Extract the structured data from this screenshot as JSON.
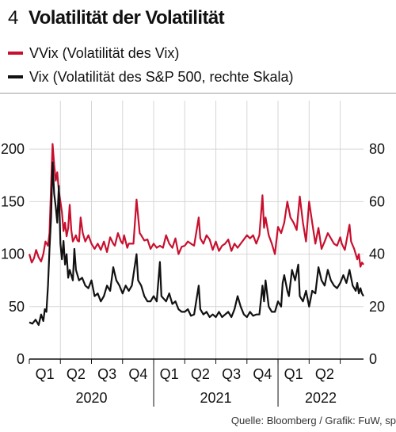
{
  "figure_number": "4",
  "title": "Volatilität der Volatilität",
  "source": "Quelle: Bloomberg / Grafik: FuW, sp",
  "colors": {
    "vvix": "#c8102e",
    "vix": "#111111",
    "grid": "#d6d6d6",
    "frame": "#9e9e9e"
  },
  "chart_data": {
    "type": "line",
    "x_unit": "quarter",
    "x_start": "2020-01-01",
    "xlim": [
      0,
      10.75
    ],
    "quarter_labels": [
      "Q1",
      "Q2",
      "Q3",
      "Q4",
      "Q1",
      "Q2",
      "Q3",
      "Q4",
      "Q1",
      "Q2"
    ],
    "year_labels": [
      {
        "label": "2020",
        "span": [
          0,
          4
        ]
      },
      {
        "label": "2021",
        "span": [
          4,
          8
        ]
      },
      {
        "label": "2022",
        "span": [
          8,
          10.75
        ]
      }
    ],
    "y_left": {
      "ticks": [
        0,
        50,
        100,
        150,
        200
      ],
      "lim": [
        0,
        216
      ]
    },
    "y_right": {
      "ticks": [
        0,
        20,
        40,
        60,
        80
      ],
      "lim": [
        0,
        86.4
      ]
    },
    "grid": true,
    "series": [
      {
        "name": "VVix (Volatilität des Vix)",
        "axis": "left",
        "color": "#c8102e",
        "points": [
          [
            0.0,
            100
          ],
          [
            0.08,
            92
          ],
          [
            0.15,
            96
          ],
          [
            0.22,
            104
          ],
          [
            0.3,
            97
          ],
          [
            0.38,
            93
          ],
          [
            0.45,
            100
          ],
          [
            0.52,
            112
          ],
          [
            0.6,
            108
          ],
          [
            0.65,
            120
          ],
          [
            0.7,
            165
          ],
          [
            0.75,
            205
          ],
          [
            0.8,
            185
          ],
          [
            0.85,
            170
          ],
          [
            0.9,
            178
          ],
          [
            0.95,
            160
          ],
          [
            1.0,
            150
          ],
          [
            1.05,
            140
          ],
          [
            1.1,
            122
          ],
          [
            1.15,
            130
          ],
          [
            1.2,
            117
          ],
          [
            1.25,
            125
          ],
          [
            1.3,
            147
          ],
          [
            1.35,
            123
          ],
          [
            1.4,
            112
          ],
          [
            1.5,
            118
          ],
          [
            1.55,
            113
          ],
          [
            1.6,
            112
          ],
          [
            1.65,
            135
          ],
          [
            1.72,
            120
          ],
          [
            1.8,
            112
          ],
          [
            1.9,
            118
          ],
          [
            2.0,
            110
          ],
          [
            2.1,
            105
          ],
          [
            2.2,
            110
          ],
          [
            2.3,
            104
          ],
          [
            2.4,
            112
          ],
          [
            2.5,
            102
          ],
          [
            2.6,
            116
          ],
          [
            2.7,
            110
          ],
          [
            2.75,
            108
          ],
          [
            2.85,
            120
          ],
          [
            2.95,
            112
          ],
          [
            3.0,
            110
          ],
          [
            3.05,
            118
          ],
          [
            3.15,
            106
          ],
          [
            3.2,
            110
          ],
          [
            3.35,
            110
          ],
          [
            3.45,
            152
          ],
          [
            3.55,
            120
          ],
          [
            3.6,
            118
          ],
          [
            3.7,
            113
          ],
          [
            3.8,
            114
          ],
          [
            3.9,
            105
          ],
          [
            4.0,
            110
          ],
          [
            4.1,
            106
          ],
          [
            4.2,
            108
          ],
          [
            4.3,
            106
          ],
          [
            4.4,
            118
          ],
          [
            4.5,
            110
          ],
          [
            4.6,
            106
          ],
          [
            4.7,
            115
          ],
          [
            4.8,
            100
          ],
          [
            4.9,
            107
          ],
          [
            5.0,
            108
          ],
          [
            5.1,
            112
          ],
          [
            5.2,
            110
          ],
          [
            5.3,
            108
          ],
          [
            5.45,
            135
          ],
          [
            5.5,
            115
          ],
          [
            5.6,
            110
          ],
          [
            5.7,
            118
          ],
          [
            5.8,
            114
          ],
          [
            5.9,
            104
          ],
          [
            6.0,
            112
          ],
          [
            6.1,
            103
          ],
          [
            6.2,
            108
          ],
          [
            6.3,
            110
          ],
          [
            6.4,
            114
          ],
          [
            6.5,
            103
          ],
          [
            6.6,
            110
          ],
          [
            6.7,
            106
          ],
          [
            6.8,
            110
          ],
          [
            6.9,
            114
          ],
          [
            7.0,
            118
          ],
          [
            7.1,
            115
          ],
          [
            7.2,
            118
          ],
          [
            7.3,
            110
          ],
          [
            7.4,
            118
          ],
          [
            7.5,
            156
          ],
          [
            7.55,
            125
          ],
          [
            7.6,
            135
          ],
          [
            7.7,
            118
          ],
          [
            7.8,
            110
          ],
          [
            7.9,
            100
          ],
          [
            8.0,
            126
          ],
          [
            8.1,
            120
          ],
          [
            8.2,
            130
          ],
          [
            8.3,
            150
          ],
          [
            8.4,
            135
          ],
          [
            8.5,
            130
          ],
          [
            8.6,
            123
          ],
          [
            8.7,
            155
          ],
          [
            8.8,
            130
          ],
          [
            8.9,
            112
          ],
          [
            9.0,
            150
          ],
          [
            9.1,
            130
          ],
          [
            9.2,
            110
          ],
          [
            9.3,
            125
          ],
          [
            9.4,
            105
          ],
          [
            9.5,
            112
          ],
          [
            9.6,
            120
          ],
          [
            9.7,
            115
          ],
          [
            9.8,
            110
          ],
          [
            9.9,
            108
          ],
          [
            10.0,
            116
          ],
          [
            10.05,
            110
          ],
          [
            10.15,
            104
          ],
          [
            10.3,
            128
          ],
          [
            10.35,
            112
          ],
          [
            10.45,
            105
          ],
          [
            10.55,
            95
          ],
          [
            10.6,
            100
          ],
          [
            10.65,
            88
          ],
          [
            10.7,
            92
          ],
          [
            10.75,
            90
          ]
        ]
      },
      {
        "name": "Vix (Volatilität des S&P 500, rechte Skala)",
        "axis": "right",
        "color": "#111111",
        "points": [
          [
            0.0,
            14
          ],
          [
            0.1,
            13.5
          ],
          [
            0.2,
            15
          ],
          [
            0.3,
            13
          ],
          [
            0.38,
            17
          ],
          [
            0.45,
            14.5
          ],
          [
            0.5,
            19
          ],
          [
            0.55,
            18
          ],
          [
            0.6,
            28
          ],
          [
            0.65,
            42
          ],
          [
            0.7,
            54
          ],
          [
            0.75,
            75
          ],
          [
            0.8,
            63
          ],
          [
            0.85,
            58
          ],
          [
            0.9,
            52
          ],
          [
            0.95,
            66
          ],
          [
            1.0,
            44
          ],
          [
            1.05,
            38
          ],
          [
            1.1,
            45
          ],
          [
            1.15,
            36
          ],
          [
            1.2,
            40
          ],
          [
            1.25,
            31
          ],
          [
            1.3,
            34
          ],
          [
            1.4,
            30
          ],
          [
            1.45,
            42
          ],
          [
            1.5,
            34
          ],
          [
            1.6,
            30
          ],
          [
            1.7,
            31
          ],
          [
            1.8,
            28
          ],
          [
            1.9,
            27
          ],
          [
            2.0,
            30
          ],
          [
            2.1,
            24
          ],
          [
            2.2,
            25
          ],
          [
            2.3,
            22
          ],
          [
            2.4,
            24
          ],
          [
            2.5,
            28
          ],
          [
            2.6,
            26
          ],
          [
            2.7,
            35
          ],
          [
            2.8,
            30
          ],
          [
            2.9,
            28
          ],
          [
            3.0,
            25
          ],
          [
            3.1,
            28
          ],
          [
            3.2,
            26
          ],
          [
            3.3,
            28
          ],
          [
            3.45,
            40
          ],
          [
            3.5,
            30
          ],
          [
            3.6,
            28
          ],
          [
            3.7,
            24
          ],
          [
            3.8,
            22
          ],
          [
            3.9,
            22
          ],
          [
            4.0,
            24
          ],
          [
            4.1,
            22
          ],
          [
            4.2,
            37
          ],
          [
            4.25,
            24
          ],
          [
            4.4,
            22
          ],
          [
            4.5,
            25
          ],
          [
            4.6,
            21
          ],
          [
            4.7,
            22
          ],
          [
            4.8,
            19
          ],
          [
            4.9,
            18
          ],
          [
            5.0,
            18
          ],
          [
            5.1,
            19
          ],
          [
            5.2,
            16.5
          ],
          [
            5.3,
            17
          ],
          [
            5.45,
            28
          ],
          [
            5.5,
            19
          ],
          [
            5.6,
            17
          ],
          [
            5.7,
            18
          ],
          [
            5.8,
            16
          ],
          [
            5.9,
            17
          ],
          [
            6.0,
            16
          ],
          [
            6.1,
            18
          ],
          [
            6.2,
            16
          ],
          [
            6.3,
            17
          ],
          [
            6.4,
            18
          ],
          [
            6.5,
            16
          ],
          [
            6.6,
            19
          ],
          [
            6.7,
            24
          ],
          [
            6.8,
            20
          ],
          [
            6.9,
            17
          ],
          [
            7.0,
            16
          ],
          [
            7.1,
            18
          ],
          [
            7.2,
            16.5
          ],
          [
            7.3,
            17
          ],
          [
            7.4,
            17
          ],
          [
            7.5,
            28
          ],
          [
            7.55,
            22
          ],
          [
            7.6,
            30
          ],
          [
            7.7,
            20
          ],
          [
            7.8,
            18
          ],
          [
            7.9,
            18
          ],
          [
            8.0,
            22
          ],
          [
            8.1,
            20
          ],
          [
            8.15,
            29
          ],
          [
            8.2,
            32
          ],
          [
            8.3,
            26
          ],
          [
            8.35,
            24
          ],
          [
            8.45,
            34
          ],
          [
            8.55,
            30
          ],
          [
            8.65,
            36
          ],
          [
            8.7,
            24
          ],
          [
            8.8,
            22
          ],
          [
            8.9,
            26
          ],
          [
            9.0,
            20
          ],
          [
            9.1,
            26
          ],
          [
            9.2,
            25
          ],
          [
            9.3,
            35
          ],
          [
            9.4,
            30
          ],
          [
            9.5,
            28
          ],
          [
            9.6,
            34
          ],
          [
            9.7,
            30
          ],
          [
            9.8,
            28
          ],
          [
            9.9,
            27
          ],
          [
            10.0,
            29
          ],
          [
            10.1,
            32
          ],
          [
            10.2,
            29
          ],
          [
            10.3,
            34
          ],
          [
            10.4,
            28
          ],
          [
            10.5,
            26
          ],
          [
            10.55,
            29
          ],
          [
            10.6,
            25
          ],
          [
            10.65,
            27
          ],
          [
            10.7,
            25
          ],
          [
            10.75,
            24
          ]
        ]
      }
    ]
  }
}
